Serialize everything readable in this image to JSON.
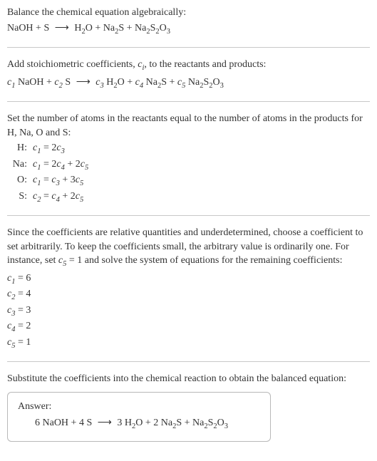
{
  "intro": {
    "line1": "Balance the chemical equation algebraically:"
  },
  "eq1": {
    "r1": "NaOH",
    "plus1": "+",
    "r2": "S",
    "arrow": "⟶",
    "p1a": "H",
    "p1s1": "2",
    "p1b": "O",
    "plus2": "+",
    "p2a": "Na",
    "p2s1": "2",
    "p2b": "S",
    "plus3": "+",
    "p3a": "Na",
    "p3s1": "2",
    "p3b": "S",
    "p3s2": "2",
    "p3c": "O",
    "p3s3": "3"
  },
  "stoich": {
    "line1a": "Add stoichiometric coefficients, ",
    "civar": "c",
    "cisub": "i",
    "line1b": ", to the reactants and products:"
  },
  "eq2": {
    "c1": "c",
    "c1s": "1",
    "r1": " NaOH",
    "plus1": "+",
    "c2": "c",
    "c2s": "2",
    "r2": " S",
    "arrow": "⟶",
    "c3": "c",
    "c3s": "3",
    "p1a": " H",
    "p1s1": "2",
    "p1b": "O",
    "plus2": "+",
    "c4": "c",
    "c4s": "4",
    "p2a": " Na",
    "p2s1": "2",
    "p2b": "S",
    "plus3": "+",
    "c5": "c",
    "c5s": "5",
    "p3a": " Na",
    "p3s1": "2",
    "p3b": "S",
    "p3s2": "2",
    "p3c": "O",
    "p3s3": "3"
  },
  "atoms": {
    "intro": "Set the number of atoms in the reactants equal to the number of atoms in the products for H, Na, O and S:",
    "rows": [
      {
        "lbl": "H:",
        "lhs_c": "c",
        "lhs_s": "1",
        "eq": " = 2",
        "rhs_c": "c",
        "rhs_s": "3"
      },
      {
        "lbl": "Na:",
        "lhs_c": "c",
        "lhs_s": "1",
        "eq": " = 2",
        "r1c": "c",
        "r1s": "4",
        "plus": " + 2",
        "r2c": "c",
        "r2s": "5"
      },
      {
        "lbl": "O:",
        "lhs_c": "c",
        "lhs_s": "1",
        "eq": " = ",
        "r1c": "c",
        "r1s": "3",
        "plus": " + 3",
        "r2c": "c",
        "r2s": "5"
      },
      {
        "lbl": "S:",
        "lhs_c": "c",
        "lhs_s": "2",
        "eq": " = ",
        "r1c": "c",
        "r1s": "4",
        "plus": " + 2",
        "r2c": "c",
        "r2s": "5"
      }
    ]
  },
  "explain": {
    "p1a": "Since the coefficients are relative quantities and underdetermined, choose a coefficient to set arbitrarily. To keep the coefficients small, the arbitrary value is ordinarily one. For instance, set ",
    "cv": "c",
    "cs": "5",
    "p1b": " = 1 and solve the system of equations for the remaining coefficients:"
  },
  "coeffs": [
    {
      "c": "c",
      "s": "1",
      "v": " = 6"
    },
    {
      "c": "c",
      "s": "2",
      "v": " = 4"
    },
    {
      "c": "c",
      "s": "3",
      "v": " = 3"
    },
    {
      "c": "c",
      "s": "4",
      "v": " = 2"
    },
    {
      "c": "c",
      "s": "5",
      "v": " = 1"
    }
  ],
  "subst": "Substitute the coefficients into the chemical reaction to obtain the balanced equation:",
  "answer": {
    "label": "Answer:",
    "n1": "6 NaOH",
    "plus1": " + ",
    "n2": "4 S",
    "arrow": "⟶",
    "n3a": "3 H",
    "n3s": "2",
    "n3b": "O",
    "plus2": " + ",
    "n4n": "2 Na",
    "n4s1": "2",
    "n4b": "S",
    "plus3": " + ",
    "n5a": "Na",
    "n5s1": "2",
    "n5b": "S",
    "n5s2": "2",
    "n5c": "O",
    "n5s3": "3"
  },
  "colors": {
    "rule": "#c8c8c8",
    "box": "#b8b8b8"
  }
}
